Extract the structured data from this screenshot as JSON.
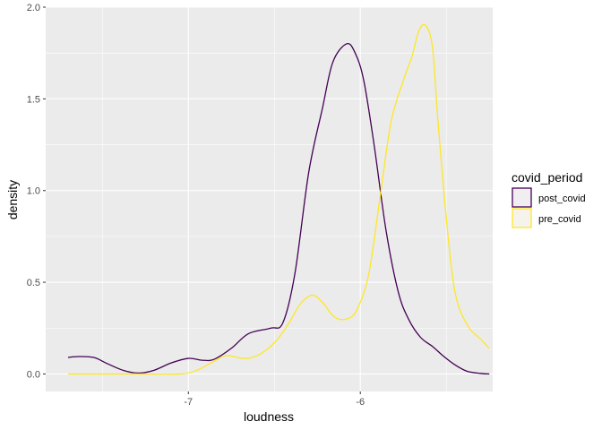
{
  "chart_data": {
    "type": "area",
    "title": "",
    "xlabel": "loudness",
    "ylabel": "density",
    "xlim": [
      -7.83,
      -5.23
    ],
    "ylim": [
      -0.0955,
      2.0
    ],
    "x_ticks": [
      -7,
      -6
    ],
    "x_tick_labels": [
      "-7",
      "-6"
    ],
    "y_ticks": [
      0.0,
      0.5,
      1.0,
      1.5,
      2.0
    ],
    "y_tick_labels": [
      "0.0",
      "0.5",
      "1.0",
      "1.5",
      "2.0"
    ],
    "grid": true,
    "panel_background": "#ebebeb",
    "legend": {
      "title": "covid_period",
      "position": "right"
    },
    "series": [
      {
        "name": "post_covid",
        "color": "#440154",
        "fill": "#f1eef2",
        "points": [
          [
            -7.7,
            0.09
          ],
          [
            -7.64,
            0.095
          ],
          [
            -7.55,
            0.09
          ],
          [
            -7.48,
            0.06
          ],
          [
            -7.38,
            0.02
          ],
          [
            -7.29,
            0.005
          ],
          [
            -7.2,
            0.02
          ],
          [
            -7.1,
            0.06
          ],
          [
            -7.0,
            0.085
          ],
          [
            -6.92,
            0.075
          ],
          [
            -6.85,
            0.08
          ],
          [
            -6.75,
            0.14
          ],
          [
            -6.65,
            0.22
          ],
          [
            -6.52,
            0.25
          ],
          [
            -6.45,
            0.28
          ],
          [
            -6.38,
            0.55
          ],
          [
            -6.3,
            1.1
          ],
          [
            -6.22,
            1.45
          ],
          [
            -6.16,
            1.7
          ],
          [
            -6.08,
            1.8
          ],
          [
            -6.03,
            1.75
          ],
          [
            -5.98,
            1.6
          ],
          [
            -5.92,
            1.25
          ],
          [
            -5.85,
            0.78
          ],
          [
            -5.78,
            0.45
          ],
          [
            -5.72,
            0.3
          ],
          [
            -5.65,
            0.2
          ],
          [
            -5.58,
            0.15
          ],
          [
            -5.52,
            0.1
          ],
          [
            -5.45,
            0.05
          ],
          [
            -5.38,
            0.015
          ],
          [
            -5.3,
            0.003
          ],
          [
            -5.25,
            0.0
          ]
        ]
      },
      {
        "name": "pre_covid",
        "color": "#fde725",
        "fill": "#f5f3ec",
        "points": [
          [
            -7.7,
            0.0
          ],
          [
            -7.3,
            0.0
          ],
          [
            -7.05,
            0.0
          ],
          [
            -6.95,
            0.02
          ],
          [
            -6.85,
            0.07
          ],
          [
            -6.78,
            0.1
          ],
          [
            -6.68,
            0.085
          ],
          [
            -6.6,
            0.1
          ],
          [
            -6.5,
            0.17
          ],
          [
            -6.42,
            0.27
          ],
          [
            -6.35,
            0.38
          ],
          [
            -6.28,
            0.43
          ],
          [
            -6.22,
            0.39
          ],
          [
            -6.15,
            0.31
          ],
          [
            -6.08,
            0.3
          ],
          [
            -6.02,
            0.35
          ],
          [
            -5.95,
            0.55
          ],
          [
            -5.88,
            1.0
          ],
          [
            -5.82,
            1.38
          ],
          [
            -5.75,
            1.6
          ],
          [
            -5.7,
            1.73
          ],
          [
            -5.66,
            1.87
          ],
          [
            -5.62,
            1.9
          ],
          [
            -5.58,
            1.78
          ],
          [
            -5.55,
            1.4
          ],
          [
            -5.5,
            0.85
          ],
          [
            -5.45,
            0.45
          ],
          [
            -5.38,
            0.27
          ],
          [
            -5.3,
            0.19
          ],
          [
            -5.25,
            0.14
          ]
        ]
      }
    ]
  }
}
